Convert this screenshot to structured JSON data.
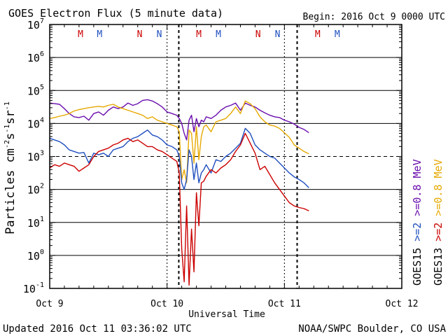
{
  "chart_data": {
    "type": "line",
    "title": "GOES Electron Flux (5 minute data)",
    "begin_label": "Begin: 2016 Oct 9 0000 UTC",
    "xlabel": "Universal Time",
    "ylabel": "Particles cm⁻²s⁻¹sr⁻¹",
    "ylabel_parts": {
      "base": "Particles cm",
      "e1": "-2",
      "mid1": "s",
      "e2": "-1",
      "mid2": "sr",
      "e3": "-1"
    },
    "x_unit": "hours since 2016 Oct 9 0000 UTC",
    "xlim": [
      0,
      72
    ],
    "ylim_log10": [
      -1,
      7
    ],
    "x_ticks": [
      {
        "x": 0,
        "label": "Oct 9"
      },
      {
        "x": 24,
        "label": "Oct 10"
      },
      {
        "x": 48,
        "label": "Oct 11"
      },
      {
        "x": 72,
        "label": "Oct 12"
      }
    ],
    "y_ticks": [
      {
        "exp": -1,
        "base": "10",
        "sup": "-1"
      },
      {
        "exp": 0,
        "base": "10",
        "sup": "0"
      },
      {
        "exp": 1,
        "base": "10",
        "sup": "1"
      },
      {
        "exp": 2,
        "base": "10",
        "sup": "2"
      },
      {
        "exp": 3,
        "base": "10",
        "sup": "3"
      },
      {
        "exp": 4,
        "base": "10",
        "sup": "4"
      },
      {
        "exp": 5,
        "base": "10",
        "sup": "5"
      },
      {
        "exp": 6,
        "base": "10",
        "sup": "6"
      },
      {
        "exp": 7,
        "base": "10",
        "sup": "7"
      }
    ],
    "threshold_log10": 3,
    "midnight_markers_x": [
      26.4,
      50.6
    ],
    "noon_markers_x": [],
    "mn_markers": [
      {
        "x": 6.3,
        "label": "M",
        "color": "#cc0000"
      },
      {
        "x": 10.2,
        "label": "M",
        "color": "#1f4fbf"
      },
      {
        "x": 18.4,
        "label": "N",
        "color": "#cc0000"
      },
      {
        "x": 22.4,
        "label": "N",
        "color": "#1f4fbf"
      },
      {
        "x": 30.5,
        "label": "M",
        "color": "#cc0000"
      },
      {
        "x": 34.5,
        "label": "M",
        "color": "#1f4fbf"
      },
      {
        "x": 42.6,
        "label": "N",
        "color": "#cc0000"
      },
      {
        "x": 46.6,
        "label": "N",
        "color": "#1f4fbf"
      },
      {
        "x": 54.8,
        "label": "M",
        "color": "#cc0000"
      },
      {
        "x": 58.8,
        "label": "M",
        "color": "#1f4fbf"
      }
    ],
    "legend": [
      {
        "label": "GOES15",
        "color": "#000000"
      },
      {
        "label": ">=2",
        "color": "#1f4fbf"
      },
      {
        "label": ">=0.8",
        "color": "#6a0dad"
      },
      {
        "label": "MeV",
        "color": "#6a0dad"
      },
      {
        "label": "GOES13",
        "color": "#000000"
      },
      {
        "label": ">=2",
        "color": "#cc0000"
      },
      {
        "label": ">=0.8",
        "color": "#e6a800"
      },
      {
        "label": "MeV",
        "color": "#e6a800"
      }
    ],
    "series": [
      {
        "name": "GOES15 >=0.8 MeV",
        "color": "#6a0dad",
        "x": [
          0,
          1,
          2,
          3,
          4,
          5,
          6,
          7,
          8,
          9,
          10,
          11,
          12,
          13,
          14,
          15,
          16,
          17,
          18,
          19,
          20,
          21,
          22,
          23,
          24,
          25,
          26,
          26.5,
          27,
          27.5,
          28,
          28.5,
          29,
          29.5,
          30,
          30.5,
          31,
          31.5,
          32,
          33,
          34,
          35,
          36,
          37,
          38,
          39,
          40,
          41,
          42,
          43,
          44,
          45,
          46,
          47,
          48,
          49,
          50,
          51,
          52,
          53
        ],
        "log10": [
          4.62,
          4.6,
          4.58,
          4.45,
          4.3,
          4.2,
          4.18,
          4.22,
          4.1,
          4.3,
          4.35,
          4.25,
          4.4,
          4.5,
          4.45,
          4.5,
          4.62,
          4.55,
          4.6,
          4.7,
          4.72,
          4.68,
          4.6,
          4.5,
          4.35,
          4.3,
          4.25,
          4.15,
          4.0,
          3.7,
          3.5,
          4.1,
          4.25,
          3.75,
          4.15,
          3.9,
          4.1,
          4.05,
          4.2,
          4.15,
          4.25,
          4.4,
          4.5,
          4.55,
          4.62,
          4.4,
          4.62,
          4.55,
          4.5,
          4.4,
          4.32,
          4.25,
          4.2,
          4.18,
          4.1,
          4.05,
          3.98,
          3.88,
          3.82,
          3.72
        ]
      },
      {
        "name": "GOES13 >=0.8 MeV",
        "color": "#e6a800",
        "x": [
          0,
          1,
          2,
          3,
          4,
          5,
          6,
          7,
          8,
          9,
          10,
          11,
          12,
          13,
          14,
          15,
          16,
          17,
          18,
          19,
          20,
          21,
          22,
          23,
          24,
          25,
          26,
          26.5,
          27,
          27.5,
          28,
          28.5,
          29,
          29.5,
          30,
          30.5,
          31,
          31.5,
          32,
          33,
          34,
          35,
          36,
          37,
          38,
          39,
          40,
          41,
          42,
          43,
          44,
          45,
          46,
          47,
          48,
          49,
          50,
          51,
          52,
          53
        ],
        "log10": [
          4.15,
          4.18,
          4.22,
          4.25,
          4.3,
          4.38,
          4.42,
          4.45,
          4.48,
          4.5,
          4.52,
          4.5,
          4.55,
          4.58,
          4.5,
          4.45,
          4.4,
          4.35,
          4.3,
          4.25,
          4.15,
          4.2,
          4.1,
          4.05,
          4.0,
          3.95,
          3.9,
          3.75,
          2.3,
          2.6,
          2.2,
          3.8,
          3.7,
          2.8,
          3.9,
          2.9,
          3.6,
          3.9,
          3.95,
          3.75,
          4.05,
          4.1,
          4.15,
          4.3,
          4.5,
          4.3,
          4.68,
          4.6,
          4.45,
          4.2,
          4.05,
          3.95,
          3.92,
          3.85,
          3.72,
          3.58,
          3.35,
          3.25,
          3.15,
          3.08
        ]
      },
      {
        "name": "GOES15 >=2 MeV",
        "color": "#1f4fbf",
        "x": [
          0,
          1,
          2,
          3,
          4,
          5,
          6,
          7,
          8,
          9,
          10,
          11,
          12,
          13,
          14,
          15,
          16,
          17,
          18,
          19,
          20,
          21,
          22,
          23,
          24,
          25,
          26,
          26.5,
          27,
          27.5,
          28,
          28.5,
          29,
          29.5,
          30,
          30.5,
          31,
          31.5,
          32,
          33,
          34,
          35,
          36,
          37,
          38,
          39,
          40,
          41,
          42,
          43,
          44,
          45,
          46,
          47,
          48,
          49,
          50,
          51,
          52,
          53
        ],
        "log10": [
          3.55,
          3.5,
          3.45,
          3.35,
          3.2,
          3.15,
          3.1,
          3.12,
          2.8,
          3.1,
          3.05,
          3.1,
          3.0,
          3.2,
          3.25,
          3.3,
          3.45,
          3.55,
          3.6,
          3.7,
          3.8,
          3.65,
          3.6,
          3.5,
          3.35,
          3.3,
          3.2,
          3.0,
          2.2,
          2.0,
          2.3,
          3.2,
          3.0,
          2.3,
          2.8,
          2.2,
          2.5,
          2.6,
          2.75,
          2.5,
          2.9,
          2.85,
          3.0,
          3.1,
          3.25,
          3.4,
          3.85,
          3.7,
          3.35,
          3.2,
          3.1,
          3.0,
          2.95,
          2.8,
          2.65,
          2.5,
          2.38,
          2.3,
          2.2,
          2.05
        ]
      },
      {
        "name": "GOES13 >=2 MeV",
        "color": "#cc0000",
        "x": [
          0,
          1,
          2,
          3,
          4,
          5,
          6,
          7,
          8,
          9,
          10,
          11,
          12,
          13,
          14,
          15,
          16,
          17,
          18,
          19,
          20,
          21,
          22,
          23,
          24,
          25,
          26,
          26.5,
          27,
          27.5,
          28,
          28.5,
          29,
          29.5,
          30,
          30.5,
          31,
          31.5,
          32,
          33,
          34,
          35,
          36,
          37,
          38,
          39,
          40,
          41,
          42,
          43,
          44,
          45,
          46,
          47,
          48,
          49,
          50,
          51,
          52,
          53
        ],
        "log10": [
          2.65,
          2.75,
          2.7,
          2.8,
          2.75,
          2.7,
          2.55,
          2.65,
          2.75,
          3.0,
          3.15,
          3.2,
          3.25,
          3.35,
          3.4,
          3.5,
          3.55,
          3.45,
          3.5,
          3.4,
          3.3,
          3.3,
          3.2,
          3.15,
          3.05,
          2.95,
          2.85,
          2.5,
          0.2,
          -0.8,
          1.5,
          -0.9,
          0.8,
          -0.5,
          1.9,
          0.9,
          2.2,
          2.25,
          2.4,
          2.6,
          2.5,
          2.65,
          2.75,
          2.9,
          3.15,
          3.35,
          3.7,
          3.4,
          3.1,
          2.6,
          2.7,
          2.45,
          2.2,
          2.0,
          1.8,
          1.6,
          1.5,
          1.45,
          1.42,
          1.35
        ]
      }
    ]
  },
  "footer": {
    "updated": "Updated 2016 Oct 11 03:36:02 UTC",
    "credit": "NOAA/SWPC Boulder, CO USA"
  }
}
